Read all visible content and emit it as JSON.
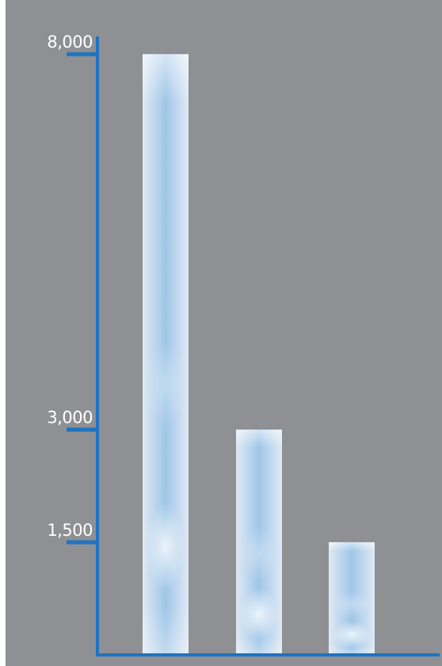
{
  "colors": {
    "background": "#8e9093",
    "axis": "#1f74c2",
    "tick_label": "#ffffff",
    "bar_light": "#e8f1fa",
    "bar_mid": "#a7cbe9",
    "bar_glow": "#ffffff"
  },
  "chart_data": {
    "type": "bar",
    "categories": [
      "",
      "",
      ""
    ],
    "values": [
      8000,
      3000,
      1500
    ],
    "title": "",
    "xlabel": "",
    "ylabel": "",
    "ylim": [
      0,
      8700
    ],
    "y_ticks": [
      {
        "value": 1500,
        "label": "1,500"
      },
      {
        "value": 3000,
        "label": "3,000"
      },
      {
        "value": 8000,
        "label": "8,000"
      }
    ],
    "grid": false,
    "legend": "none"
  }
}
